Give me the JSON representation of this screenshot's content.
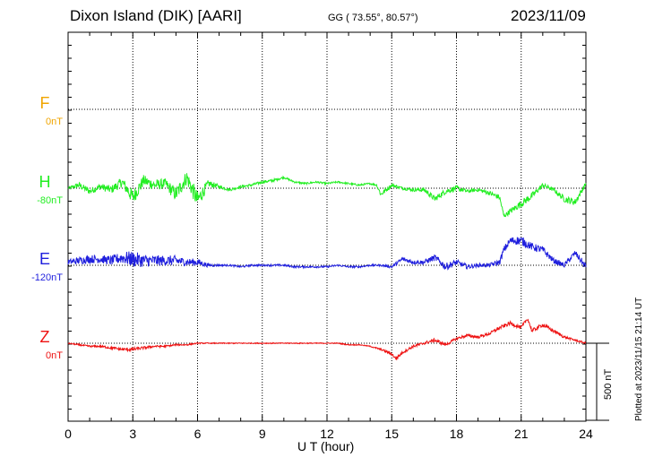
{
  "header": {
    "station": "Dixon Island (DIK)  [AARI]",
    "coords": "GG ( 73.55°,  80.57°)",
    "date": "2023/11/09"
  },
  "footer": {
    "plotted": "Plotted at 2023/11/15 21:14 UT",
    "scale": "500 nT"
  },
  "chart_data": {
    "type": "line",
    "xlabel": "U T (hour)",
    "xlim": [
      0,
      24
    ],
    "xticks": [
      "0",
      "3",
      "6",
      "9",
      "12",
      "15",
      "18",
      "21",
      "24"
    ],
    "grid": true,
    "scale_bar_nT": 500,
    "components": [
      {
        "name": "F",
        "baseline_label": "0nT",
        "color": "#f0a500",
        "values": []
      },
      {
        "name": "H",
        "baseline_label": "-80nT",
        "color": "#22ee22",
        "x": [
          0,
          0.5,
          1,
          1.5,
          2,
          2.5,
          3,
          3.5,
          4,
          4.5,
          5,
          5.5,
          6,
          6.5,
          7,
          7.5,
          8,
          8.5,
          9,
          9.5,
          10,
          10.5,
          11,
          11.5,
          12,
          12.5,
          13,
          13.5,
          14,
          14.3,
          14.5,
          15,
          15.5,
          16,
          16.5,
          17,
          17.5,
          18,
          18.5,
          19,
          19.5,
          20,
          20.2,
          20.5,
          21,
          21.5,
          22,
          22.5,
          23,
          23.5,
          24
        ],
        "values": [
          0,
          20,
          -20,
          10,
          -10,
          40,
          -60,
          50,
          20,
          30,
          -40,
          70,
          -80,
          30,
          10,
          -10,
          10,
          20,
          40,
          50,
          70,
          40,
          30,
          40,
          30,
          40,
          30,
          20,
          30,
          20,
          -40,
          20,
          0,
          -10,
          -10,
          -70,
          -20,
          0,
          -20,
          -10,
          -30,
          -60,
          -180,
          -150,
          -100,
          -50,
          20,
          -10,
          -70,
          -90,
          30
        ],
        "noise": [
          10,
          35,
          35,
          35,
          45,
          55,
          85,
          60,
          60,
          55,
          80,
          80,
          100,
          40,
          20,
          15,
          15,
          15,
          15,
          15,
          10,
          10,
          10,
          10,
          10,
          10,
          10,
          10,
          10,
          10,
          30,
          20,
          15,
          20,
          25,
          30,
          30,
          30,
          20,
          20,
          25,
          30,
          20,
          30,
          40,
          40,
          25,
          20,
          35,
          40,
          20
        ]
      },
      {
        "name": "E",
        "baseline_label": "-120nT",
        "color": "#1f1fdd",
        "x": [
          0,
          0.5,
          1,
          1.5,
          2,
          2.5,
          3,
          3.5,
          4,
          4.5,
          5,
          5.5,
          6,
          6.5,
          7,
          7.5,
          8,
          8.5,
          9,
          9.5,
          10,
          10.5,
          11,
          11.5,
          12,
          12.5,
          13,
          13.5,
          14,
          14.5,
          15,
          15.5,
          16,
          16.5,
          17,
          17.5,
          18,
          18.5,
          19,
          19.5,
          20,
          20.2,
          20.5,
          21,
          21.5,
          22,
          22.5,
          23,
          23.5,
          24
        ],
        "values": [
          20,
          30,
          40,
          40,
          30,
          50,
          40,
          30,
          30,
          30,
          30,
          20,
          20,
          0,
          0,
          0,
          -10,
          0,
          0,
          0,
          0,
          -10,
          -10,
          -10,
          -10,
          0,
          -10,
          -10,
          0,
          0,
          -10,
          40,
          20,
          20,
          50,
          -10,
          20,
          -10,
          0,
          0,
          20,
          100,
          160,
          160,
          120,
          100,
          30,
          0,
          80,
          -10
        ],
        "noise": [
          30,
          40,
          45,
          45,
          50,
          65,
          85,
          70,
          60,
          55,
          55,
          40,
          40,
          20,
          10,
          10,
          10,
          10,
          10,
          10,
          10,
          10,
          10,
          10,
          10,
          10,
          10,
          10,
          10,
          10,
          15,
          25,
          20,
          25,
          35,
          40,
          30,
          25,
          20,
          20,
          30,
          40,
          40,
          50,
          40,
          40,
          30,
          25,
          30,
          40
        ]
      },
      {
        "name": "Z",
        "baseline_label": "0nT",
        "color": "#ee1111",
        "x": [
          0,
          0.5,
          1,
          1.5,
          2,
          2.5,
          3,
          3.5,
          4,
          4.5,
          5,
          5.5,
          6,
          6.5,
          7,
          7.5,
          8,
          8.5,
          9,
          9.5,
          10,
          10.5,
          11,
          11.5,
          12,
          12.5,
          13,
          13.5,
          14,
          14.5,
          15,
          15.2,
          15.5,
          16,
          16.5,
          17,
          17.5,
          18,
          18.5,
          19,
          19.5,
          20,
          20.5,
          21,
          21.3,
          21.5,
          22,
          22.5,
          23,
          23.5,
          24
        ],
        "values": [
          0,
          -10,
          -20,
          -20,
          -30,
          -40,
          -40,
          -30,
          -20,
          -20,
          -10,
          -10,
          0,
          0,
          0,
          0,
          0,
          0,
          0,
          0,
          0,
          0,
          0,
          0,
          0,
          0,
          -10,
          -10,
          -20,
          -40,
          -70,
          -100,
          -60,
          -20,
          0,
          20,
          -10,
          30,
          50,
          40,
          60,
          100,
          130,
          100,
          160,
          80,
          120,
          80,
          40,
          20,
          0
        ],
        "noise": [
          5,
          8,
          10,
          10,
          15,
          15,
          20,
          15,
          12,
          10,
          8,
          8,
          6,
          5,
          5,
          5,
          5,
          5,
          5,
          5,
          5,
          5,
          5,
          5,
          5,
          5,
          5,
          5,
          5,
          10,
          15,
          15,
          15,
          15,
          15,
          20,
          15,
          15,
          15,
          15,
          15,
          20,
          20,
          20,
          20,
          20,
          20,
          20,
          15,
          10,
          10
        ]
      }
    ]
  }
}
